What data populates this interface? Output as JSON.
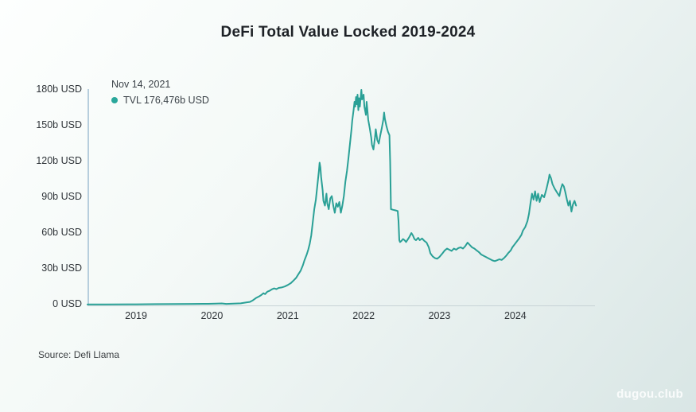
{
  "page": {
    "title": "DeFi Total Value Locked 2019-2024",
    "source": "Source: Defi Llama",
    "watermark": "dugou.club"
  },
  "tooltip": {
    "date": "Nov 14, 2021",
    "value_text": "TVL 176,476b USD",
    "dot_color": "#2aa79b"
  },
  "chart_data": {
    "type": "line",
    "title": "DeFi Total Value Locked 2019-2024",
    "xlabel": "",
    "ylabel": "",
    "grid": false,
    "legend_position": "top-left",
    "line_color": "#2aa096",
    "xlim": [
      2018.36,
      2025.05
    ],
    "ylim": [
      0,
      180
    ],
    "x_ticks": [
      {
        "value": 2019,
        "label": "2019"
      },
      {
        "value": 2020,
        "label": "2020"
      },
      {
        "value": 2021,
        "label": "2021"
      },
      {
        "value": 2022,
        "label": "2022"
      },
      {
        "value": 2023,
        "label": "2023"
      },
      {
        "value": 2024,
        "label": "2024"
      }
    ],
    "y_ticks": [
      {
        "value": 0,
        "label": "0 USD"
      },
      {
        "value": 30,
        "label": "30b USD"
      },
      {
        "value": 60,
        "label": "60b USD"
      },
      {
        "value": 90,
        "label": "90b USD"
      },
      {
        "value": 120,
        "label": "120b USD"
      },
      {
        "value": 150,
        "label": "150b USD"
      },
      {
        "value": 180,
        "label": "180b USD"
      }
    ],
    "series": [
      {
        "name": "TVL",
        "unit": "b USD",
        "highlight": {
          "date": "Nov 14, 2021",
          "value_text": "176,476b USD"
        },
        "points": [
          [
            2018.36,
            0.15
          ],
          [
            2018.6,
            0.2
          ],
          [
            2018.9,
            0.27
          ],
          [
            2019.0,
            0.3
          ],
          [
            2019.25,
            0.38
          ],
          [
            2019.5,
            0.5
          ],
          [
            2019.75,
            0.58
          ],
          [
            2019.95,
            0.65
          ],
          [
            2020.05,
            0.8
          ],
          [
            2020.13,
            1.0
          ],
          [
            2020.19,
            0.6
          ],
          [
            2020.28,
            0.8
          ],
          [
            2020.38,
            1.1
          ],
          [
            2020.46,
            1.9
          ],
          [
            2020.5,
            2.3
          ],
          [
            2020.54,
            3.6
          ],
          [
            2020.58,
            5.5
          ],
          [
            2020.62,
            6.8
          ],
          [
            2020.65,
            8.0
          ],
          [
            2020.68,
            9.6
          ],
          [
            2020.7,
            8.8
          ],
          [
            2020.73,
            10.8
          ],
          [
            2020.76,
            11.6
          ],
          [
            2020.79,
            12.8
          ],
          [
            2020.82,
            13.6
          ],
          [
            2020.85,
            13.0
          ],
          [
            2020.88,
            14.0
          ],
          [
            2020.92,
            14.4
          ],
          [
            2020.96,
            15.2
          ],
          [
            2021.0,
            16.5
          ],
          [
            2021.04,
            18.0
          ],
          [
            2021.08,
            20.5
          ],
          [
            2021.11,
            22.5
          ],
          [
            2021.14,
            25.5
          ],
          [
            2021.17,
            28.5
          ],
          [
            2021.2,
            33.0
          ],
          [
            2021.22,
            37.0
          ],
          [
            2021.25,
            42.0
          ],
          [
            2021.27,
            46.0
          ],
          [
            2021.29,
            51.0
          ],
          [
            2021.31,
            58.0
          ],
          [
            2021.33,
            69.0
          ],
          [
            2021.35,
            80.0
          ],
          [
            2021.37,
            88.0
          ],
          [
            2021.39,
            100.0
          ],
          [
            2021.41,
            112.0
          ],
          [
            2021.42,
            119.0
          ],
          [
            2021.43,
            115.0
          ],
          [
            2021.44,
            107.0
          ],
          [
            2021.46,
            96.0
          ],
          [
            2021.47,
            87.0
          ],
          [
            2021.49,
            83.0
          ],
          [
            2021.51,
            93.0
          ],
          [
            2021.52,
            85.0
          ],
          [
            2021.54,
            80.0
          ],
          [
            2021.56,
            89.0
          ],
          [
            2021.58,
            91.0
          ],
          [
            2021.6,
            83.0
          ],
          [
            2021.62,
            77.0
          ],
          [
            2021.64,
            85.0
          ],
          [
            2021.66,
            82.0
          ],
          [
            2021.68,
            86.0
          ],
          [
            2021.7,
            77.0
          ],
          [
            2021.72,
            83.0
          ],
          [
            2021.74,
            91.0
          ],
          [
            2021.76,
            103.0
          ],
          [
            2021.78,
            112.0
          ],
          [
            2021.8,
            123.0
          ],
          [
            2021.82,
            135.0
          ],
          [
            2021.84,
            147.0
          ],
          [
            2021.85,
            154.0
          ],
          [
            2021.87,
            164.0
          ],
          [
            2021.88,
            170.0
          ],
          [
            2021.89,
            166.0
          ],
          [
            2021.9,
            174.0
          ],
          [
            2021.91,
            168.0
          ],
          [
            2021.92,
            176.0
          ],
          [
            2021.93,
            163.0
          ],
          [
            2021.94,
            173.0
          ],
          [
            2021.95,
            166.0
          ],
          [
            2021.97,
            180.0
          ],
          [
            2021.98,
            172.0
          ],
          [
            2022.0,
            176.0
          ],
          [
            2022.01,
            166.0
          ],
          [
            2022.03,
            159.0
          ],
          [
            2022.04,
            170.0
          ],
          [
            2022.05,
            163.0
          ],
          [
            2022.06,
            155.0
          ],
          [
            2022.08,
            148.0
          ],
          [
            2022.1,
            140.0
          ],
          [
            2022.11,
            134.0
          ],
          [
            2022.13,
            130.0
          ],
          [
            2022.15,
            140.0
          ],
          [
            2022.16,
            147.0
          ],
          [
            2022.18,
            138.0
          ],
          [
            2022.2,
            135.0
          ],
          [
            2022.22,
            142.0
          ],
          [
            2022.24,
            148.0
          ],
          [
            2022.26,
            155.0
          ],
          [
            2022.27,
            161.0
          ],
          [
            2022.28,
            156.0
          ],
          [
            2022.3,
            150.0
          ],
          [
            2022.32,
            145.0
          ],
          [
            2022.34,
            142.0
          ],
          [
            2022.35,
            120.0
          ],
          [
            2022.36,
            80.0
          ],
          [
            2022.39,
            79.5
          ],
          [
            2022.42,
            79.0
          ],
          [
            2022.45,
            78.5
          ],
          [
            2022.46,
            70.0
          ],
          [
            2022.47,
            54.0
          ],
          [
            2022.48,
            52.5
          ],
          [
            2022.5,
            53.5
          ],
          [
            2022.52,
            55.0
          ],
          [
            2022.54,
            54.0
          ],
          [
            2022.56,
            52.5
          ],
          [
            2022.6,
            56.5
          ],
          [
            2022.63,
            60.0
          ],
          [
            2022.65,
            58.0
          ],
          [
            2022.67,
            55.0
          ],
          [
            2022.69,
            54.0
          ],
          [
            2022.72,
            56.0
          ],
          [
            2022.74,
            54.0
          ],
          [
            2022.77,
            55.5
          ],
          [
            2022.8,
            53.5
          ],
          [
            2022.83,
            52.0
          ],
          [
            2022.86,
            48.0
          ],
          [
            2022.88,
            43.0
          ],
          [
            2022.91,
            40.5
          ],
          [
            2022.94,
            39.0
          ],
          [
            2022.97,
            38.5
          ],
          [
            2023.0,
            40.0
          ],
          [
            2023.04,
            43.0
          ],
          [
            2023.07,
            45.5
          ],
          [
            2023.1,
            47.0
          ],
          [
            2023.13,
            46.0
          ],
          [
            2023.16,
            45.0
          ],
          [
            2023.19,
            47.0
          ],
          [
            2023.22,
            46.0
          ],
          [
            2023.25,
            47.5
          ],
          [
            2023.28,
            48.0
          ],
          [
            2023.31,
            47.0
          ],
          [
            2023.34,
            49.0
          ],
          [
            2023.37,
            52.0
          ],
          [
            2023.4,
            50.0
          ],
          [
            2023.43,
            48.0
          ],
          [
            2023.46,
            47.0
          ],
          [
            2023.49,
            45.5
          ],
          [
            2023.52,
            44.0
          ],
          [
            2023.55,
            42.0
          ],
          [
            2023.58,
            41.0
          ],
          [
            2023.61,
            40.0
          ],
          [
            2023.64,
            39.0
          ],
          [
            2023.67,
            38.0
          ],
          [
            2023.7,
            37.0
          ],
          [
            2023.73,
            36.5
          ],
          [
            2023.76,
            37.2
          ],
          [
            2023.79,
            38.0
          ],
          [
            2023.82,
            37.5
          ],
          [
            2023.85,
            39.0
          ],
          [
            2023.88,
            41.0
          ],
          [
            2023.91,
            43.5
          ],
          [
            2023.94,
            45.5
          ],
          [
            2023.96,
            48.0
          ],
          [
            2023.99,
            50.5
          ],
          [
            2024.02,
            53.0
          ],
          [
            2024.05,
            55.5
          ],
          [
            2024.08,
            58.5
          ],
          [
            2024.1,
            62.0
          ],
          [
            2024.13,
            65.0
          ],
          [
            2024.16,
            70.0
          ],
          [
            2024.18,
            76.0
          ],
          [
            2024.2,
            85.0
          ],
          [
            2024.22,
            93.0
          ],
          [
            2024.24,
            88.0
          ],
          [
            2024.26,
            95.0
          ],
          [
            2024.28,
            87.0
          ],
          [
            2024.3,
            93.0
          ],
          [
            2024.32,
            86.0
          ],
          [
            2024.35,
            92.0
          ],
          [
            2024.38,
            90.0
          ],
          [
            2024.41,
            97.0
          ],
          [
            2024.44,
            105.0
          ],
          [
            2024.45,
            109.0
          ],
          [
            2024.47,
            106.0
          ],
          [
            2024.49,
            101.0
          ],
          [
            2024.52,
            97.0
          ],
          [
            2024.55,
            94.0
          ],
          [
            2024.58,
            91.0
          ],
          [
            2024.6,
            97.0
          ],
          [
            2024.62,
            101.0
          ],
          [
            2024.64,
            99.0
          ],
          [
            2024.66,
            94.0
          ],
          [
            2024.68,
            88.0
          ],
          [
            2024.7,
            83.0
          ],
          [
            2024.72,
            87.0
          ],
          [
            2024.74,
            78.0
          ],
          [
            2024.76,
            84.0
          ],
          [
            2024.78,
            87.0
          ],
          [
            2024.8,
            83.0
          ]
        ]
      }
    ]
  }
}
